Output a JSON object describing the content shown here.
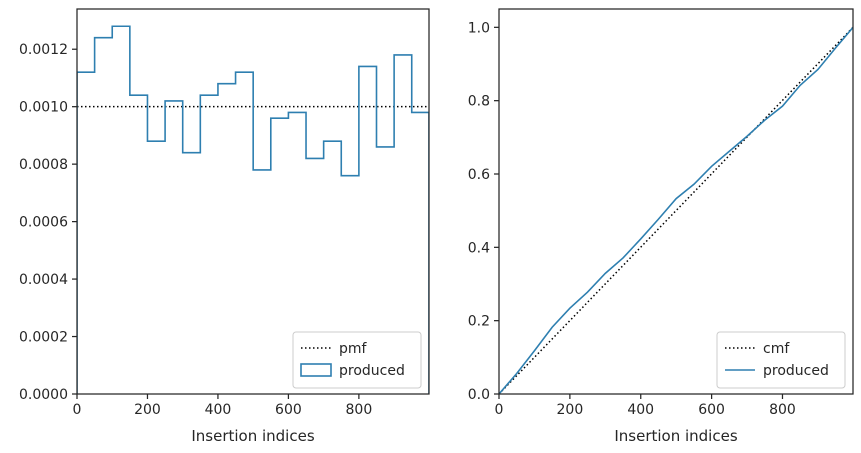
{
  "chart_data": [
    {
      "type": "step",
      "xlabel": "Insertion indices",
      "ylabel": "",
      "xlim": [
        0,
        999
      ],
      "ylim": [
        0,
        0.00134
      ],
      "x_ticks": [
        0,
        200,
        400,
        600,
        800
      ],
      "x_tick_labels": [
        "0",
        "200",
        "400",
        "600",
        "800"
      ],
      "y_ticks": [
        0,
        0.0002,
        0.0004,
        0.0006,
        0.0008,
        0.001,
        0.0012
      ],
      "y_tick_labels": [
        "0.0000",
        "0.0002",
        "0.0004",
        "0.0006",
        "0.0008",
        "0.0010",
        "0.0012"
      ],
      "legend_position": "lower-right",
      "series": [
        {
          "name": "pmf",
          "style": "dotted",
          "color": "#000000",
          "x": [
            0,
            999
          ],
          "values": [
            0.001,
            0.001
          ]
        },
        {
          "name": "produced",
          "style": "histogram-step",
          "color": "#2e7fb0",
          "bin_edges": [
            0,
            50,
            100,
            150,
            200,
            250,
            300,
            350,
            400,
            450,
            500,
            550,
            600,
            650,
            700,
            750,
            800,
            850,
            900,
            950,
            999
          ],
          "values": [
            0.00112,
            0.00124,
            0.00128,
            0.00104,
            0.00088,
            0.00102,
            0.00084,
            0.00104,
            0.00108,
            0.00112,
            0.00078,
            0.00096,
            0.00098,
            0.00082,
            0.00088,
            0.00076,
            0.00114,
            0.00086,
            0.00118,
            0.00098
          ]
        }
      ]
    },
    {
      "type": "line",
      "xlabel": "Insertion indices",
      "ylabel": "",
      "xlim": [
        0,
        999
      ],
      "ylim": [
        0,
        1.05
      ],
      "x_ticks": [
        0,
        200,
        400,
        600,
        800
      ],
      "x_tick_labels": [
        "0",
        "200",
        "400",
        "600",
        "800"
      ],
      "y_ticks": [
        0,
        0.2,
        0.4,
        0.6,
        0.8,
        1.0
      ],
      "y_tick_labels": [
        "0.0",
        "0.2",
        "0.4",
        "0.6",
        "0.8",
        "1.0"
      ],
      "legend_position": "lower-right",
      "series": [
        {
          "name": "cmf",
          "style": "dotted",
          "color": "#000000",
          "x": [
            0,
            999
          ],
          "values": [
            0,
            1.0
          ]
        },
        {
          "name": "produced",
          "style": "solid",
          "color": "#2e7fb0",
          "x": [
            0,
            50,
            100,
            150,
            200,
            250,
            300,
            350,
            400,
            450,
            500,
            550,
            600,
            650,
            700,
            750,
            800,
            850,
            900,
            950,
            999
          ],
          "values": [
            0,
            0.056,
            0.118,
            0.182,
            0.234,
            0.278,
            0.329,
            0.371,
            0.423,
            0.477,
            0.533,
            0.572,
            0.621,
            0.662,
            0.703,
            0.747,
            0.785,
            0.842,
            0.885,
            0.944,
            1.0
          ]
        }
      ]
    }
  ]
}
